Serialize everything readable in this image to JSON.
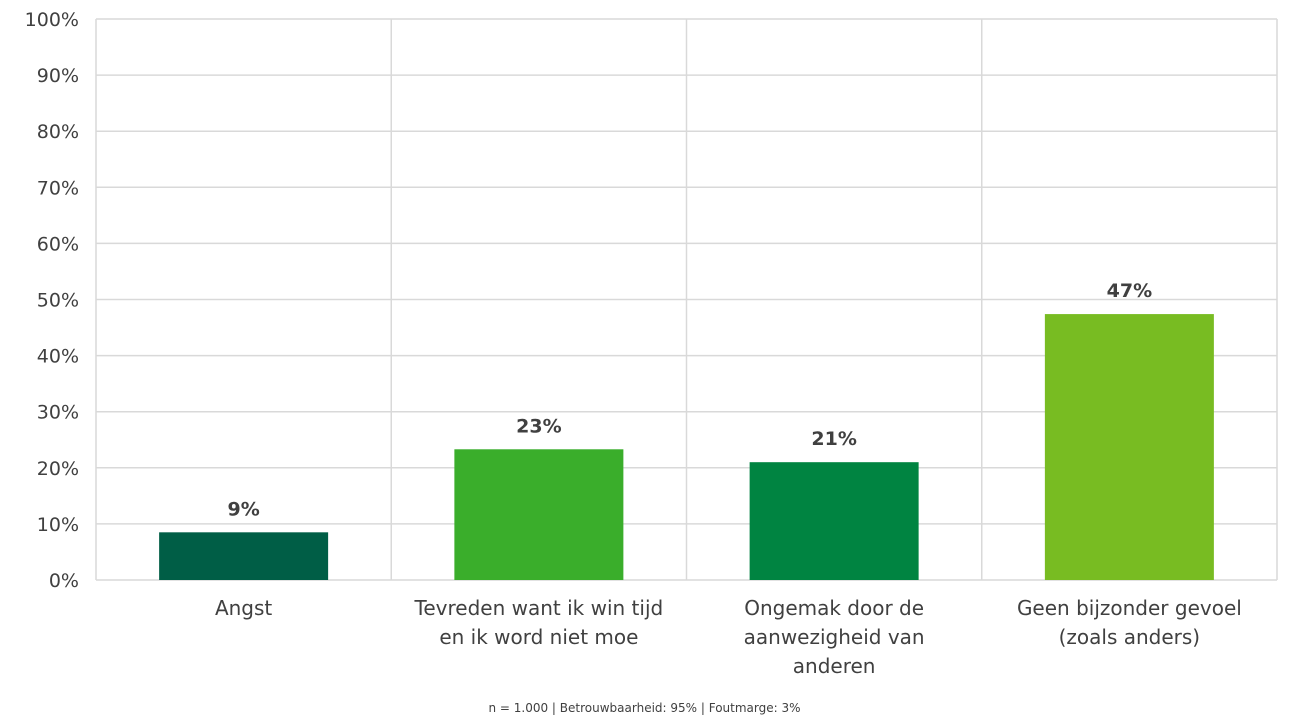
{
  "chart_data": {
    "type": "bar",
    "title": "",
    "xlabel": "",
    "ylabel": "",
    "categories": [
      "Angst",
      "Tevreden want ik win tijd en ik word niet moe",
      "Ongemak door de aanwezigheid van anderen",
      "Geen bijzonder gevoel (zoals anders)"
    ],
    "category_lines": [
      [
        "Angst"
      ],
      [
        "Tevreden want ik win tijd",
        "en ik word niet moe"
      ],
      [
        "Ongemak door de",
        "aanwezigheid van",
        "anderen"
      ],
      [
        "Geen bijzonder gevoel",
        "(zoals anders)"
      ]
    ],
    "values": [
      8.5,
      23.3,
      21.0,
      47.4
    ],
    "data_labels": [
      "9%",
      "23%",
      "21%",
      "47%"
    ],
    "colors": [
      "#005E46",
      "#3AAE2B",
      "#008441",
      "#78BC22"
    ],
    "ylim": [
      0,
      100
    ],
    "yticks": [
      0,
      10,
      20,
      30,
      40,
      50,
      60,
      70,
      80,
      90,
      100
    ],
    "ytick_labels": [
      "0%",
      "10%",
      "20%",
      "30%",
      "40%",
      "50%",
      "60%",
      "70%",
      "80%",
      "90%",
      "100%"
    ],
    "grid": true,
    "legend": "none"
  },
  "footnote": "n = 1.000 | Betrouwbaarheid: 95% | Foutmarge: 3%"
}
